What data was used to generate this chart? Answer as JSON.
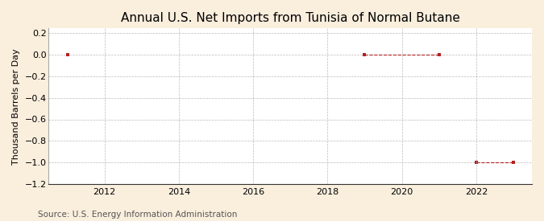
{
  "title": "Annual U.S. Net Imports from Tunisia of Normal Butane",
  "ylabel": "Thousand Barrels per Day",
  "source": "Source: U.S. Energy Information Administration",
  "background_color": "#faeedd",
  "plot_background": "#ffffff",
  "xlim": [
    2010.5,
    2023.5
  ],
  "ylim": [
    -1.2,
    0.24
  ],
  "yticks": [
    0.2,
    0.0,
    -0.2,
    -0.4,
    -0.6,
    -0.8,
    -1.0,
    -1.2
  ],
  "xticks": [
    2012,
    2014,
    2016,
    2018,
    2020,
    2022
  ],
  "segments": [
    {
      "x": [
        2011
      ],
      "y": [
        0.0
      ]
    },
    {
      "x": [
        2019,
        2021
      ],
      "y": [
        0.0,
        0.0
      ]
    },
    {
      "x": [
        2022,
        2023
      ],
      "y": [
        -1.0,
        -1.0
      ]
    }
  ],
  "marker_color": "#b22222",
  "marker_size": 3.5,
  "line_color": "#b22222",
  "linewidth": 0.8,
  "grid_color": "#aaaaaa",
  "title_fontsize": 11,
  "label_fontsize": 8,
  "tick_fontsize": 8,
  "source_fontsize": 7.5
}
